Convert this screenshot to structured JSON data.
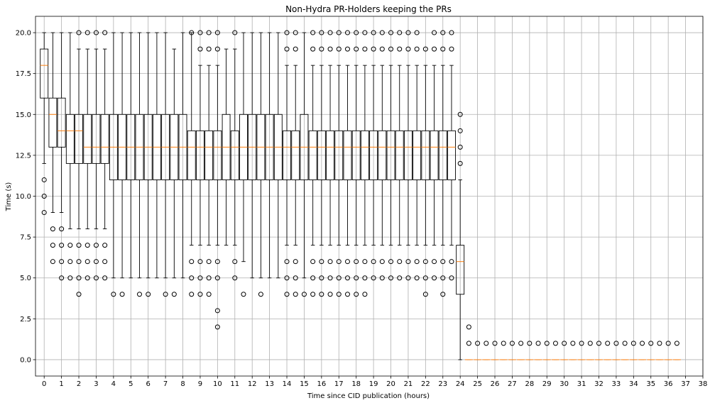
{
  "chart_data": {
    "type": "box",
    "title": "Non-Hydra PR-Holders keeping the PRs",
    "xlabel": "Time since CID publication (hours)",
    "ylabel": "Time (s)",
    "xlim": [
      -0.5,
      38
    ],
    "ylim": [
      -1,
      21
    ],
    "x_ticks": [
      0,
      1,
      2,
      3,
      4,
      5,
      6,
      7,
      8,
      9,
      10,
      11,
      12,
      13,
      14,
      15,
      16,
      17,
      18,
      19,
      20,
      21,
      22,
      23,
      24,
      25,
      26,
      27,
      28,
      29,
      30,
      31,
      32,
      33,
      34,
      35,
      36,
      37,
      38
    ],
    "y_ticks": [
      0.0,
      2.5,
      5.0,
      7.5,
      10.0,
      12.5,
      15.0,
      17.5,
      20.0
    ],
    "y_tick_labels": [
      "0.0",
      "2.5",
      "5.0",
      "7.5",
      "10.0",
      "12.5",
      "15.0",
      "17.5",
      "20.0"
    ],
    "grid": true,
    "box_width_hours": 0.45,
    "box_color": "#000000",
    "median_color": "#ff7f0e",
    "grid_color": "#b0b0b0",
    "boxes": [
      {
        "x": 0.0,
        "q1": 16,
        "median": 18,
        "q3": 19,
        "whislo": 12,
        "whishi": 20,
        "fliers": [
          11,
          10,
          9
        ]
      },
      {
        "x": 0.5,
        "q1": 13,
        "median": 15,
        "q3": 16,
        "whislo": 9,
        "whishi": 20,
        "fliers": [
          8,
          7,
          6
        ]
      },
      {
        "x": 1.0,
        "q1": 13,
        "median": 14,
        "q3": 16,
        "whislo": 9,
        "whishi": 20,
        "fliers": [
          8,
          7,
          6,
          5
        ]
      },
      {
        "x": 1.5,
        "q1": 12,
        "median": 14,
        "q3": 15,
        "whislo": 8,
        "whishi": 20,
        "fliers": [
          7,
          6,
          5
        ]
      },
      {
        "x": 2.0,
        "q1": 12,
        "median": 14,
        "q3": 15,
        "whislo": 8,
        "whishi": 19,
        "fliers": [
          20,
          7,
          6,
          5,
          4
        ]
      },
      {
        "x": 2.5,
        "q1": 12,
        "median": 13,
        "q3": 15,
        "whislo": 8,
        "whishi": 19,
        "fliers": [
          20,
          7,
          6,
          5
        ]
      },
      {
        "x": 3.0,
        "q1": 12,
        "median": 13,
        "q3": 15,
        "whislo": 8,
        "whishi": 19,
        "fliers": [
          20,
          7,
          6,
          5
        ]
      },
      {
        "x": 3.5,
        "q1": 12,
        "median": 13,
        "q3": 15,
        "whislo": 8,
        "whishi": 19,
        "fliers": [
          20,
          7,
          6,
          5
        ]
      },
      {
        "x": 4.0,
        "q1": 11,
        "median": 13,
        "q3": 15,
        "whislo": 5,
        "whishi": 20,
        "fliers": [
          4
        ]
      },
      {
        "x": 4.5,
        "q1": 11,
        "median": 13,
        "q3": 15,
        "whislo": 5,
        "whishi": 20,
        "fliers": [
          4
        ]
      },
      {
        "x": 5.0,
        "q1": 11,
        "median": 13,
        "q3": 15,
        "whislo": 5,
        "whishi": 20,
        "fliers": []
      },
      {
        "x": 5.5,
        "q1": 11,
        "median": 13,
        "q3": 15,
        "whislo": 5,
        "whishi": 20,
        "fliers": [
          4
        ]
      },
      {
        "x": 6.0,
        "q1": 11,
        "median": 13,
        "q3": 15,
        "whislo": 5,
        "whishi": 20,
        "fliers": [
          4
        ]
      },
      {
        "x": 6.5,
        "q1": 11,
        "median": 13,
        "q3": 15,
        "whislo": 5,
        "whishi": 20,
        "fliers": []
      },
      {
        "x": 7.0,
        "q1": 11,
        "median": 13,
        "q3": 15,
        "whislo": 5,
        "whishi": 20,
        "fliers": [
          4
        ]
      },
      {
        "x": 7.5,
        "q1": 11,
        "median": 13,
        "q3": 15,
        "whislo": 5,
        "whishi": 19,
        "fliers": [
          4
        ]
      },
      {
        "x": 8.0,
        "q1": 11,
        "median": 13,
        "q3": 15,
        "whislo": 5,
        "whishi": 20,
        "fliers": []
      },
      {
        "x": 8.5,
        "q1": 11,
        "median": 13,
        "q3": 14,
        "whislo": 7,
        "whishi": 20,
        "fliers": [
          20,
          6,
          5,
          4
        ]
      },
      {
        "x": 9.0,
        "q1": 11,
        "median": 13,
        "q3": 14,
        "whislo": 7,
        "whishi": 18,
        "fliers": [
          20,
          19,
          6,
          5,
          4
        ]
      },
      {
        "x": 9.5,
        "q1": 11,
        "median": 13,
        "q3": 14,
        "whislo": 7,
        "whishi": 18,
        "fliers": [
          20,
          19,
          6,
          5,
          4
        ]
      },
      {
        "x": 10.0,
        "q1": 11,
        "median": 13,
        "q3": 14,
        "whislo": 7,
        "whishi": 18,
        "fliers": [
          20,
          19,
          6,
          5,
          3,
          2
        ]
      },
      {
        "x": 10.5,
        "q1": 11,
        "median": 13,
        "q3": 15,
        "whislo": 7,
        "whishi": 19,
        "fliers": []
      },
      {
        "x": 11.0,
        "q1": 11,
        "median": 13,
        "q3": 14,
        "whislo": 7,
        "whishi": 19,
        "fliers": [
          20,
          6,
          5
        ]
      },
      {
        "x": 11.5,
        "q1": 11,
        "median": 13,
        "q3": 15,
        "whislo": 6,
        "whishi": 20,
        "fliers": [
          4
        ]
      },
      {
        "x": 12.0,
        "q1": 11,
        "median": 13,
        "q3": 15,
        "whislo": 5,
        "whishi": 20,
        "fliers": []
      },
      {
        "x": 12.5,
        "q1": 11,
        "median": 13,
        "q3": 15,
        "whislo": 5,
        "whishi": 20,
        "fliers": [
          4
        ]
      },
      {
        "x": 13.0,
        "q1": 11,
        "median": 13,
        "q3": 15,
        "whislo": 5,
        "whishi": 20,
        "fliers": []
      },
      {
        "x": 13.5,
        "q1": 11,
        "median": 13,
        "q3": 15,
        "whislo": 5,
        "whishi": 20,
        "fliers": []
      },
      {
        "x": 14.0,
        "q1": 11,
        "median": 13,
        "q3": 14,
        "whislo": 7,
        "whishi": 18,
        "fliers": [
          20,
          19,
          6,
          5,
          4
        ]
      },
      {
        "x": 14.5,
        "q1": 11,
        "median": 13,
        "q3": 14,
        "whislo": 7,
        "whishi": 18,
        "fliers": [
          20,
          19,
          6,
          5,
          4
        ]
      },
      {
        "x": 15.0,
        "q1": 11,
        "median": 13,
        "q3": 15,
        "whislo": 5,
        "whishi": 20,
        "fliers": [
          4
        ]
      },
      {
        "x": 15.5,
        "q1": 11,
        "median": 13,
        "q3": 14,
        "whislo": 7,
        "whishi": 18,
        "fliers": [
          20,
          19,
          6,
          5,
          4
        ]
      },
      {
        "x": 16.0,
        "q1": 11,
        "median": 13,
        "q3": 14,
        "whislo": 7,
        "whishi": 18,
        "fliers": [
          20,
          19,
          6,
          5,
          4
        ]
      },
      {
        "x": 16.5,
        "q1": 11,
        "median": 13,
        "q3": 14,
        "whislo": 7,
        "whishi": 18,
        "fliers": [
          20,
          19,
          6,
          5,
          4
        ]
      },
      {
        "x": 17.0,
        "q1": 11,
        "median": 13,
        "q3": 14,
        "whislo": 7,
        "whishi": 18,
        "fliers": [
          20,
          19,
          6,
          5,
          4
        ]
      },
      {
        "x": 17.5,
        "q1": 11,
        "median": 13,
        "q3": 14,
        "whislo": 7,
        "whishi": 18,
        "fliers": [
          20,
          19,
          6,
          5,
          4
        ]
      },
      {
        "x": 18.0,
        "q1": 11,
        "median": 13,
        "q3": 14,
        "whislo": 7,
        "whishi": 18,
        "fliers": [
          20,
          19,
          6,
          5,
          4
        ]
      },
      {
        "x": 18.5,
        "q1": 11,
        "median": 13,
        "q3": 14,
        "whislo": 7,
        "whishi": 18,
        "fliers": [
          20,
          19,
          6,
          5,
          4
        ]
      },
      {
        "x": 19.0,
        "q1": 11,
        "median": 13,
        "q3": 14,
        "whislo": 7,
        "whishi": 18,
        "fliers": [
          20,
          19,
          6,
          5
        ]
      },
      {
        "x": 19.5,
        "q1": 11,
        "median": 13,
        "q3": 14,
        "whislo": 7,
        "whishi": 18,
        "fliers": [
          20,
          19,
          6,
          5
        ]
      },
      {
        "x": 20.0,
        "q1": 11,
        "median": 13,
        "q3": 14,
        "whislo": 7,
        "whishi": 18,
        "fliers": [
          20,
          19,
          6,
          5
        ]
      },
      {
        "x": 20.5,
        "q1": 11,
        "median": 13,
        "q3": 14,
        "whislo": 7,
        "whishi": 18,
        "fliers": [
          20,
          19,
          6,
          5
        ]
      },
      {
        "x": 21.0,
        "q1": 11,
        "median": 13,
        "q3": 14,
        "whislo": 7,
        "whishi": 18,
        "fliers": [
          20,
          19,
          6,
          5
        ]
      },
      {
        "x": 21.5,
        "q1": 11,
        "median": 13,
        "q3": 14,
        "whislo": 7,
        "whishi": 18,
        "fliers": [
          20,
          19,
          6,
          5
        ]
      },
      {
        "x": 22.0,
        "q1": 11,
        "median": 13,
        "q3": 14,
        "whislo": 7,
        "whishi": 18,
        "fliers": [
          19,
          6,
          5,
          4
        ]
      },
      {
        "x": 22.5,
        "q1": 11,
        "median": 13,
        "q3": 14,
        "whislo": 7,
        "whishi": 18,
        "fliers": [
          20,
          19,
          6,
          5
        ]
      },
      {
        "x": 23.0,
        "q1": 11,
        "median": 13,
        "q3": 14,
        "whislo": 7,
        "whishi": 18,
        "fliers": [
          20,
          19,
          6,
          5,
          4
        ]
      },
      {
        "x": 23.5,
        "q1": 11,
        "median": 13,
        "q3": 14,
        "whislo": 7,
        "whishi": 18,
        "fliers": [
          20,
          19,
          6,
          5
        ]
      },
      {
        "x": 24.0,
        "q1": 4,
        "median": 6,
        "q3": 7,
        "whislo": 0,
        "whishi": 11,
        "fliers": [
          15,
          14,
          13,
          12
        ]
      },
      {
        "x": 24.5,
        "q1": 0,
        "median": 0,
        "q3": 0,
        "whislo": 0,
        "whishi": 0,
        "fliers": [
          2,
          1
        ]
      },
      {
        "x": 25.0,
        "q1": 0,
        "median": 0,
        "q3": 0,
        "whislo": 0,
        "whishi": 0,
        "fliers": [
          1
        ]
      },
      {
        "x": 25.5,
        "q1": 0,
        "median": 0,
        "q3": 0,
        "whislo": 0,
        "whishi": 0,
        "fliers": [
          1
        ]
      },
      {
        "x": 26.0,
        "q1": 0,
        "median": 0,
        "q3": 0,
        "whislo": 0,
        "whishi": 0,
        "fliers": [
          1
        ]
      },
      {
        "x": 26.5,
        "q1": 0,
        "median": 0,
        "q3": 0,
        "whislo": 0,
        "whishi": 0,
        "fliers": [
          1
        ]
      },
      {
        "x": 27.0,
        "q1": 0,
        "median": 0,
        "q3": 0,
        "whislo": 0,
        "whishi": 0,
        "fliers": [
          1
        ]
      },
      {
        "x": 27.5,
        "q1": 0,
        "median": 0,
        "q3": 0,
        "whislo": 0,
        "whishi": 0,
        "fliers": [
          1
        ]
      },
      {
        "x": 28.0,
        "q1": 0,
        "median": 0,
        "q3": 0,
        "whislo": 0,
        "whishi": 0,
        "fliers": [
          1
        ]
      },
      {
        "x": 28.5,
        "q1": 0,
        "median": 0,
        "q3": 0,
        "whislo": 0,
        "whishi": 0,
        "fliers": [
          1
        ]
      },
      {
        "x": 29.0,
        "q1": 0,
        "median": 0,
        "q3": 0,
        "whislo": 0,
        "whishi": 0,
        "fliers": [
          1
        ]
      },
      {
        "x": 29.5,
        "q1": 0,
        "median": 0,
        "q3": 0,
        "whislo": 0,
        "whishi": 0,
        "fliers": [
          1
        ]
      },
      {
        "x": 30.0,
        "q1": 0,
        "median": 0,
        "q3": 0,
        "whislo": 0,
        "whishi": 0,
        "fliers": [
          1
        ]
      },
      {
        "x": 30.5,
        "q1": 0,
        "median": 0,
        "q3": 0,
        "whislo": 0,
        "whishi": 0,
        "fliers": [
          1
        ]
      },
      {
        "x": 31.0,
        "q1": 0,
        "median": 0,
        "q3": 0,
        "whislo": 0,
        "whishi": 0,
        "fliers": [
          1
        ]
      },
      {
        "x": 31.5,
        "q1": 0,
        "median": 0,
        "q3": 0,
        "whislo": 0,
        "whishi": 0,
        "fliers": [
          1
        ]
      },
      {
        "x": 32.0,
        "q1": 0,
        "median": 0,
        "q3": 0,
        "whislo": 0,
        "whishi": 0,
        "fliers": [
          1
        ]
      },
      {
        "x": 32.5,
        "q1": 0,
        "median": 0,
        "q3": 0,
        "whislo": 0,
        "whishi": 0,
        "fliers": [
          1
        ]
      },
      {
        "x": 33.0,
        "q1": 0,
        "median": 0,
        "q3": 0,
        "whislo": 0,
        "whishi": 0,
        "fliers": [
          1
        ]
      },
      {
        "x": 33.5,
        "q1": 0,
        "median": 0,
        "q3": 0,
        "whislo": 0,
        "whishi": 0,
        "fliers": [
          1
        ]
      },
      {
        "x": 34.0,
        "q1": 0,
        "median": 0,
        "q3": 0,
        "whislo": 0,
        "whishi": 0,
        "fliers": [
          1
        ]
      },
      {
        "x": 34.5,
        "q1": 0,
        "median": 0,
        "q3": 0,
        "whislo": 0,
        "whishi": 0,
        "fliers": [
          1
        ]
      },
      {
        "x": 35.0,
        "q1": 0,
        "median": 0,
        "q3": 0,
        "whislo": 0,
        "whishi": 0,
        "fliers": [
          1
        ]
      },
      {
        "x": 35.5,
        "q1": 0,
        "median": 0,
        "q3": 0,
        "whislo": 0,
        "whishi": 0,
        "fliers": [
          1
        ]
      },
      {
        "x": 36.0,
        "q1": 0,
        "median": 0,
        "q3": 0,
        "whislo": 0,
        "whishi": 0,
        "fliers": [
          1
        ]
      },
      {
        "x": 36.5,
        "q1": 0,
        "median": 0,
        "q3": 0,
        "whislo": 0,
        "whishi": 0,
        "fliers": [
          1
        ]
      }
    ]
  }
}
